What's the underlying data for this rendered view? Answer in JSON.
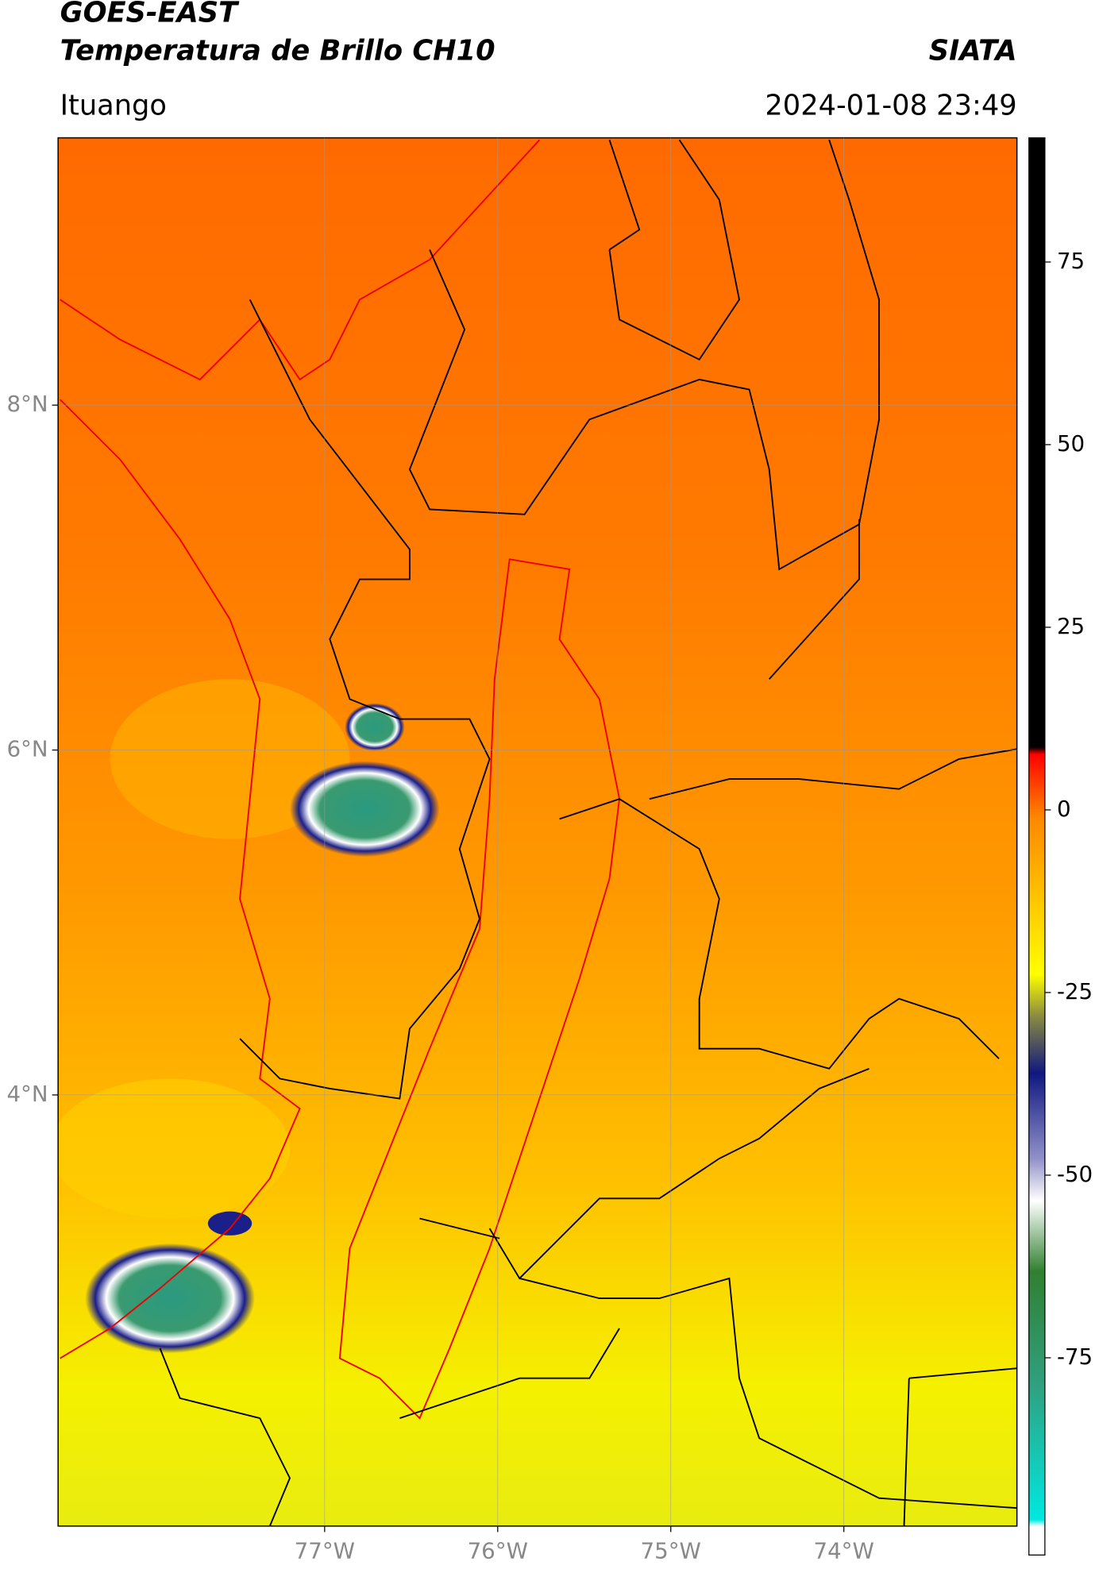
{
  "header": {
    "satellite": "GOES-EAST",
    "product": "Temperatura de Brillo CH10",
    "source": "SIATA",
    "location": "Ituango",
    "datetime": "2024-01-08 23:49"
  },
  "map": {
    "xlim": [
      -78.54,
      -73
    ],
    "ylim": [
      1.5,
      9.55
    ],
    "xticks": [
      {
        "value": -77,
        "label": "77°W"
      },
      {
        "value": -76,
        "label": "76°W"
      },
      {
        "value": -75,
        "label": "75°W"
      },
      {
        "value": -74,
        "label": "74°W"
      }
    ],
    "yticks": [
      {
        "value": 8,
        "label": "8°N"
      },
      {
        "value": 6,
        "label": "6°N"
      },
      {
        "value": 4,
        "label": "4°N"
      }
    ],
    "grid": true
  },
  "colorbar": {
    "clim": [
      -102,
      92
    ],
    "ticks": [
      75,
      50,
      25,
      0,
      -25,
      -50,
      -75
    ]
  }
}
